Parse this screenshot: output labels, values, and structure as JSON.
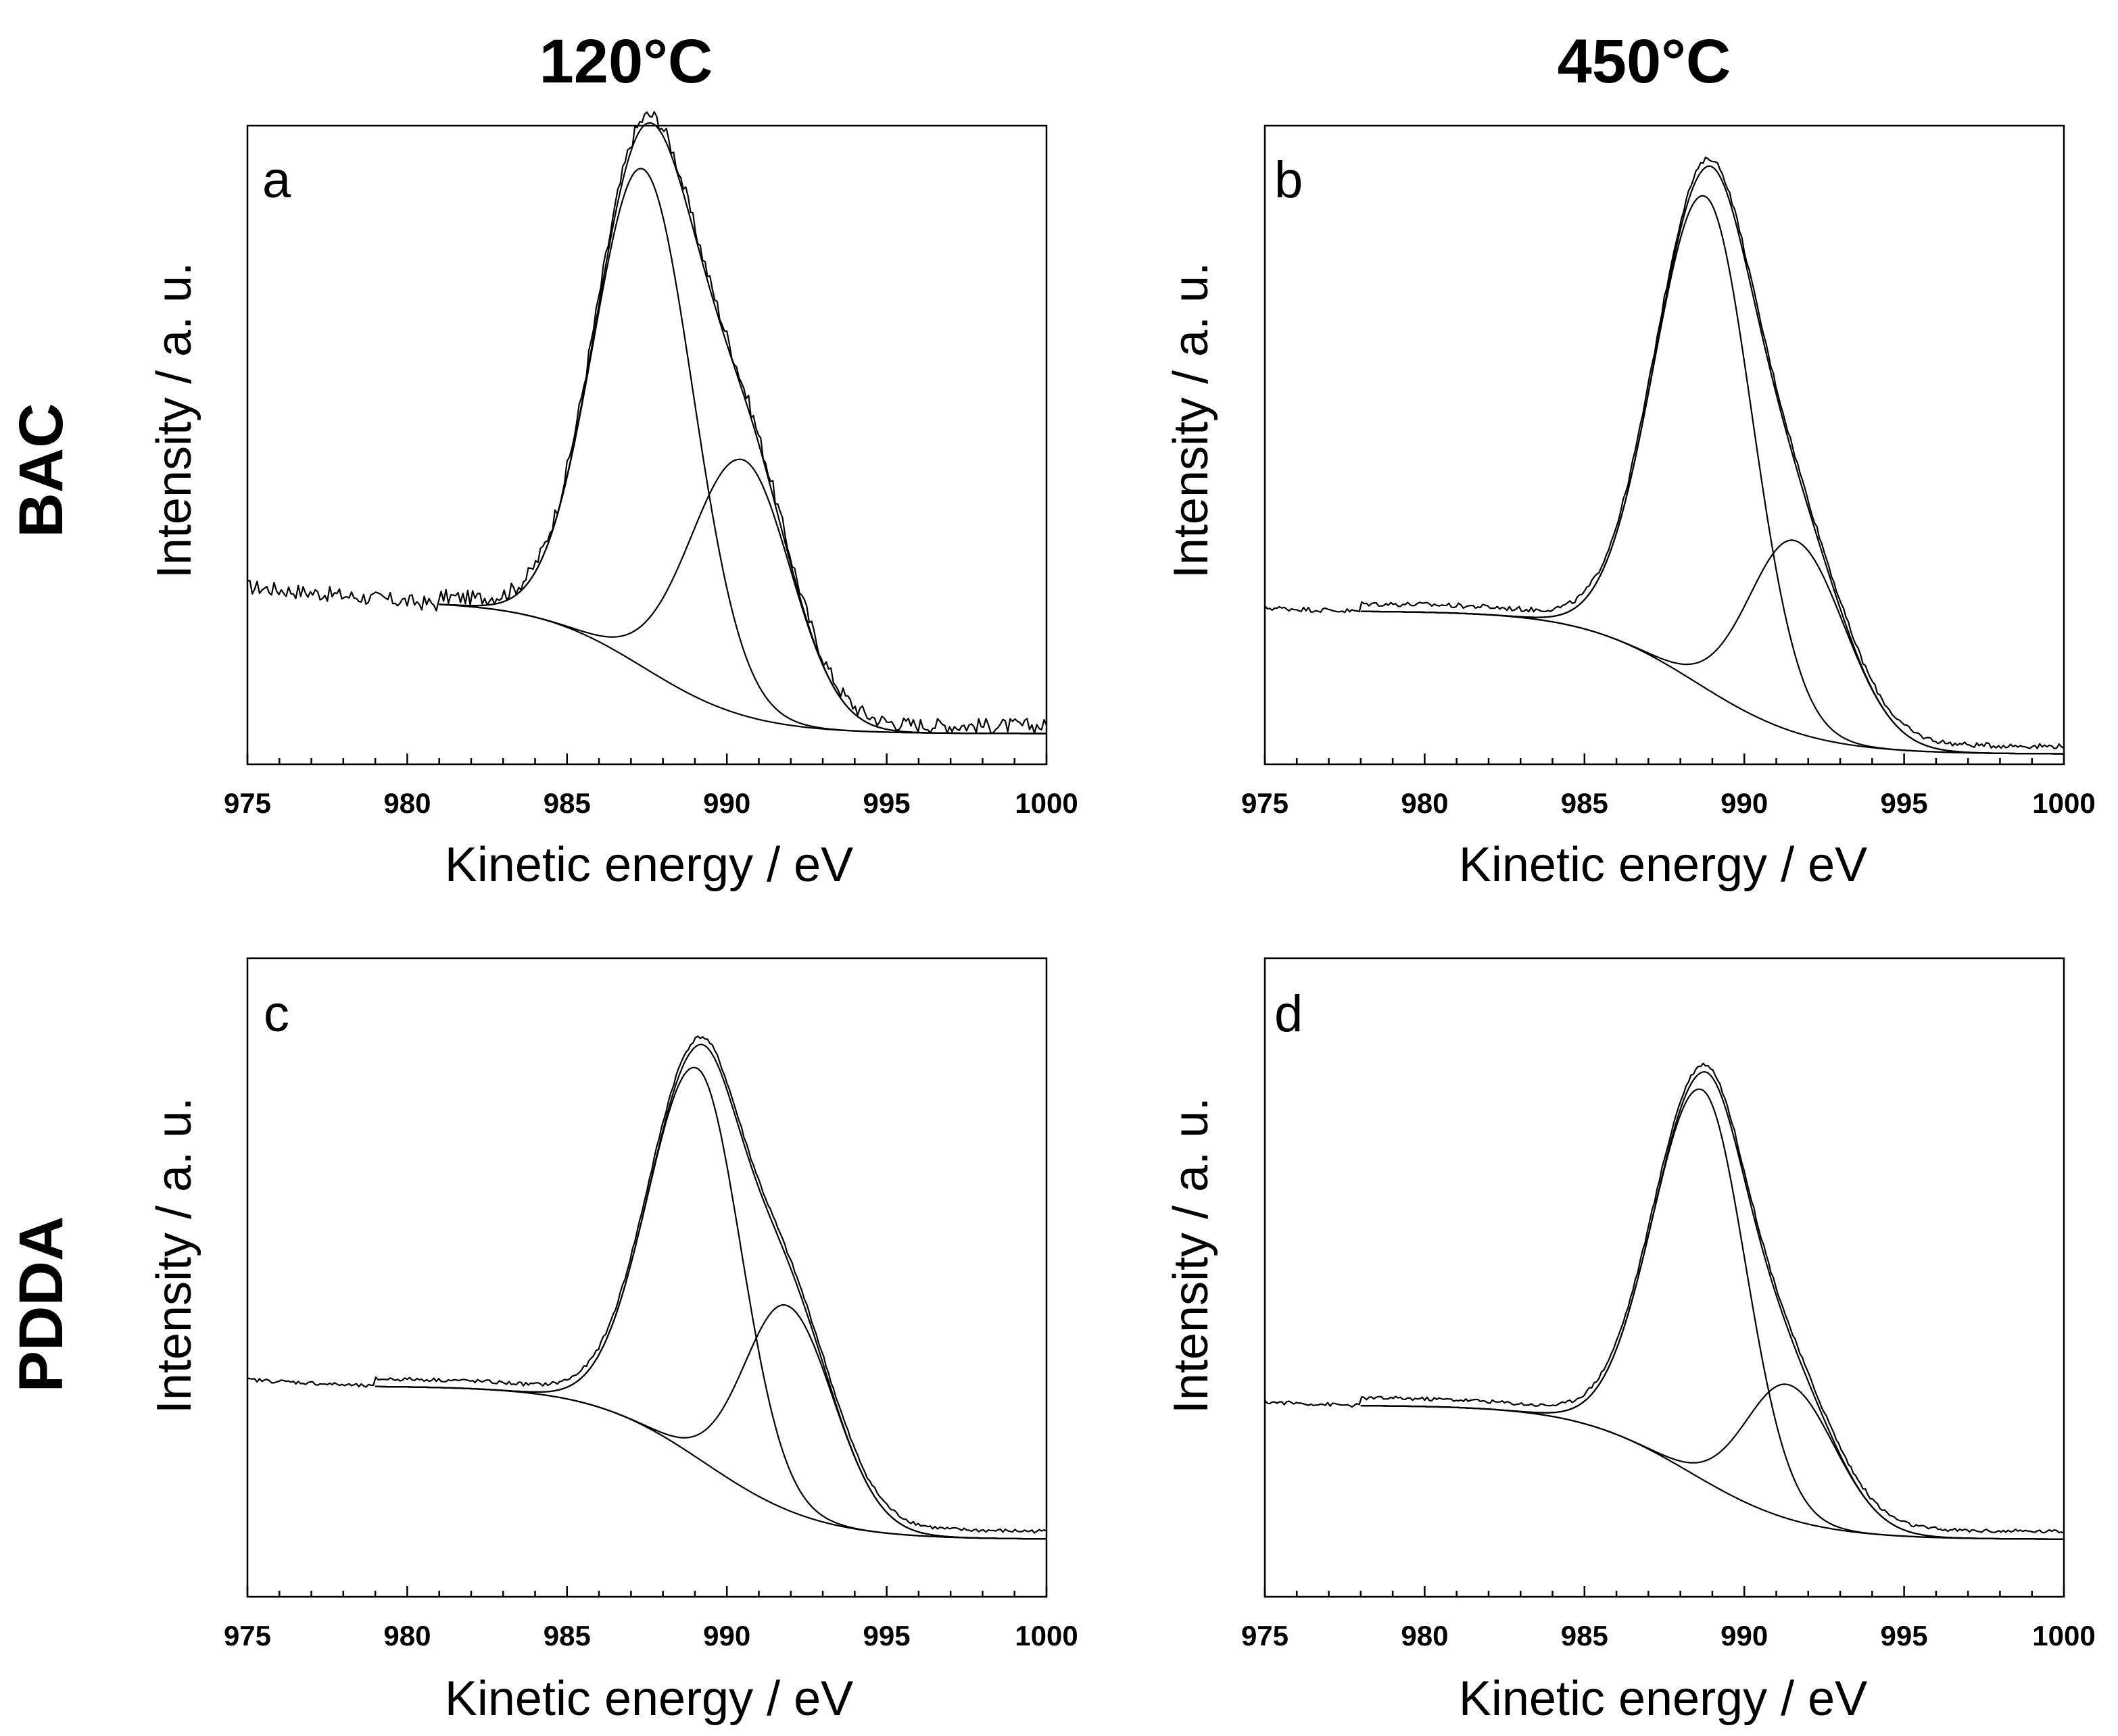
{
  "column_titles": [
    "120°C",
    "450°C"
  ],
  "row_titles": [
    "BAC",
    "PDDA"
  ],
  "chart_data": [
    {
      "type": "line",
      "panel": "a",
      "title": "",
      "xlabel": "Kinetic energy / eV",
      "ylabel": "Intensity / a. u.",
      "xlim": [
        975,
        1000
      ],
      "xticks": [
        975,
        980,
        985,
        990,
        995,
        1000
      ],
      "ylim": [
        0,
        1
      ],
      "yticks_shown": false,
      "grid": false,
      "background": {
        "x0": 981,
        "x1": 1000,
        "y_left": 0.255,
        "y_right": 0.048,
        "center": 987.4,
        "width": 1.7
      },
      "peaks": [
        {
          "name": "main peak",
          "center": 987.4,
          "amplitude": 0.78,
          "sigma_left": 1.55,
          "sigma_right": 1.55
        },
        {
          "name": "shoulder peak",
          "center": 990.5,
          "amplitude": 0.4,
          "sigma_left": 1.65,
          "sigma_right": 1.5
        }
      ],
      "raw_spectrum": {
        "x_start": 975,
        "x_end": 1000,
        "noise": 0.012,
        "pre_edge_level": 0.278
      },
      "series": [
        {
          "name": "Experimental spectrum"
        },
        {
          "name": "Fitted envelope"
        },
        {
          "name": "Background"
        },
        {
          "name": "Component 1"
        },
        {
          "name": "Component 2"
        }
      ]
    },
    {
      "type": "line",
      "panel": "b",
      "title": "",
      "xlabel": "Kinetic energy / eV",
      "ylabel": "Intensity / a. u.",
      "xlim": [
        975,
        1000
      ],
      "xticks": [
        975,
        980,
        985,
        990,
        995,
        1000
      ],
      "ylim": [
        0,
        1
      ],
      "yticks_shown": false,
      "grid": false,
      "background": {
        "x0": 978,
        "x1": 1000,
        "y_left": 0.24,
        "y_right": 0.016,
        "center": 988.5,
        "width": 1.8
      },
      "peaks": [
        {
          "name": "main peak",
          "center": 988.8,
          "amplitude": 0.77,
          "sigma_left": 1.6,
          "sigma_right": 1.45
        },
        {
          "name": "shoulder peak",
          "center": 991.6,
          "amplitude": 0.3,
          "sigma_left": 1.45,
          "sigma_right": 1.55
        }
      ],
      "raw_spectrum": {
        "x_start": 975,
        "x_end": 1000,
        "noise": 0.004,
        "pre_edge_level": 0.245
      },
      "series": [
        {
          "name": "Experimental spectrum"
        },
        {
          "name": "Fitted envelope"
        },
        {
          "name": "Background"
        },
        {
          "name": "Component 1"
        },
        {
          "name": "Component 2"
        }
      ]
    },
    {
      "type": "line",
      "panel": "c",
      "title": "",
      "xlabel": "Kinetic energy / eV",
      "ylabel": "Intensity / a. u.",
      "xlim": [
        975,
        1000
      ],
      "xticks": [
        975,
        980,
        985,
        990,
        995,
        1000
      ],
      "ylim": [
        0,
        1
      ],
      "yticks_shown": false,
      "grid": false,
      "background": {
        "x0": 979,
        "x1": 1000,
        "y_left": 0.33,
        "y_right": 0.09,
        "center": 989.3,
        "width": 1.8
      },
      "peaks": [
        {
          "name": "main peak",
          "center": 989.1,
          "amplitude": 0.61,
          "sigma_left": 1.55,
          "sigma_right": 1.35
        },
        {
          "name": "shoulder peak",
          "center": 991.9,
          "amplitude": 0.32,
          "sigma_left": 1.35,
          "sigma_right": 1.45
        }
      ],
      "raw_spectrum": {
        "x_start": 975,
        "x_end": 1000,
        "noise": 0.003,
        "pre_edge_level": 0.34
      },
      "series": [
        {
          "name": "Experimental spectrum"
        },
        {
          "name": "Fitted envelope"
        },
        {
          "name": "Background"
        },
        {
          "name": "Component 1"
        },
        {
          "name": "Component 2"
        }
      ]
    },
    {
      "type": "line",
      "panel": "d",
      "title": "",
      "xlabel": "Kinetic energy / eV",
      "ylabel": "Intensity / a. u.",
      "xlim": [
        975,
        1000
      ],
      "xticks": [
        975,
        980,
        985,
        990,
        995,
        1000
      ],
      "ylim": [
        0,
        1
      ],
      "yticks_shown": false,
      "grid": false,
      "background": {
        "x0": 978,
        "x1": 1000,
        "y_left": 0.3,
        "y_right": 0.09,
        "center": 988.3,
        "width": 1.8
      },
      "peaks": [
        {
          "name": "main peak",
          "center": 988.7,
          "amplitude": 0.61,
          "sigma_left": 1.55,
          "sigma_right": 1.35
        },
        {
          "name": "shoulder peak",
          "center": 991.4,
          "amplitude": 0.21,
          "sigma_left": 1.35,
          "sigma_right": 1.45
        }
      ],
      "raw_spectrum": {
        "x_start": 975,
        "x_end": 1000,
        "noise": 0.003,
        "pre_edge_level": 0.305
      },
      "series": [
        {
          "name": "Experimental spectrum"
        },
        {
          "name": "Fitted envelope"
        },
        {
          "name": "Background"
        },
        {
          "name": "Component 1"
        },
        {
          "name": "Component 2"
        }
      ]
    }
  ]
}
